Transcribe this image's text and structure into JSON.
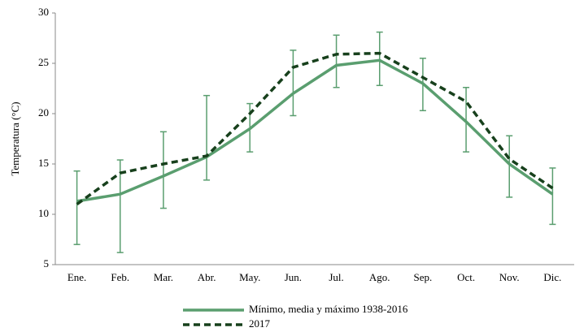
{
  "chart_data": {
    "type": "line",
    "ylabel": "Temperatura (°C)",
    "categories": [
      "Ene.",
      "Feb.",
      "Mar.",
      "Abr.",
      "May.",
      "Jun.",
      "Jul.",
      "Ago.",
      "Sep.",
      "Oct.",
      "Nov.",
      "Dic."
    ],
    "series": [
      {
        "name": "Mínimo, media y máximo 1938-2016",
        "color": "#5a9e6f",
        "dashed": false,
        "values": [
          11.3,
          12.0,
          13.8,
          15.7,
          18.5,
          22.0,
          24.8,
          25.3,
          23.0,
          19.2,
          15.0,
          12.0
        ],
        "min": [
          7.0,
          6.2,
          10.6,
          13.4,
          16.2,
          19.8,
          22.6,
          22.8,
          20.3,
          16.2,
          11.7,
          9.0
        ],
        "max": [
          14.3,
          15.4,
          18.2,
          21.8,
          21.0,
          26.3,
          27.8,
          28.1,
          25.5,
          22.6,
          17.8,
          14.6
        ]
      },
      {
        "name": "2017",
        "color": "#17401c",
        "dashed": true,
        "values": [
          11.0,
          14.1,
          15.0,
          15.8,
          20.0,
          24.6,
          25.9,
          26.0,
          23.6,
          21.2,
          15.5,
          12.6
        ]
      }
    ],
    "ylim": [
      5,
      30
    ],
    "yticks": [
      5,
      10,
      15,
      20,
      25,
      30
    ],
    "grid": false,
    "legend": "bottom"
  }
}
